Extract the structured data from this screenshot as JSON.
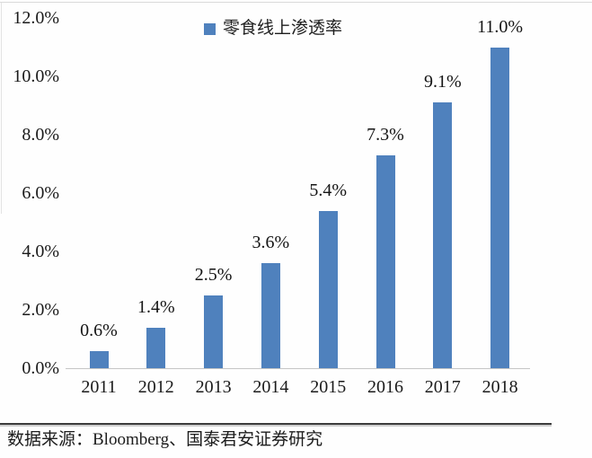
{
  "chart_data": {
    "type": "bar",
    "title": "",
    "legend_label": "零食线上渗透率",
    "legend_position": "top-center",
    "categories": [
      "2011",
      "2012",
      "2013",
      "2014",
      "2015",
      "2016",
      "2017",
      "2018"
    ],
    "values": [
      0.6,
      1.4,
      2.5,
      3.6,
      5.4,
      7.3,
      9.1,
      11.0
    ],
    "data_labels": [
      "0.6%",
      "1.4%",
      "2.5%",
      "3.6%",
      "5.4%",
      "7.3%",
      "9.1%",
      "11.0%"
    ],
    "ytick_values": [
      0,
      2,
      4,
      6,
      8,
      10,
      12
    ],
    "ytick_labels": [
      "0.0%",
      "2.0%",
      "4.0%",
      "6.0%",
      "8.0%",
      "10.0%",
      "12.0%"
    ],
    "ylim": [
      0,
      12
    ],
    "xlabel": "",
    "ylabel": "",
    "grid": false,
    "bar_color": "#4F81BD"
  },
  "footer": {
    "source_text": "数据来源：Bloomberg、国泰君安证券研究"
  }
}
